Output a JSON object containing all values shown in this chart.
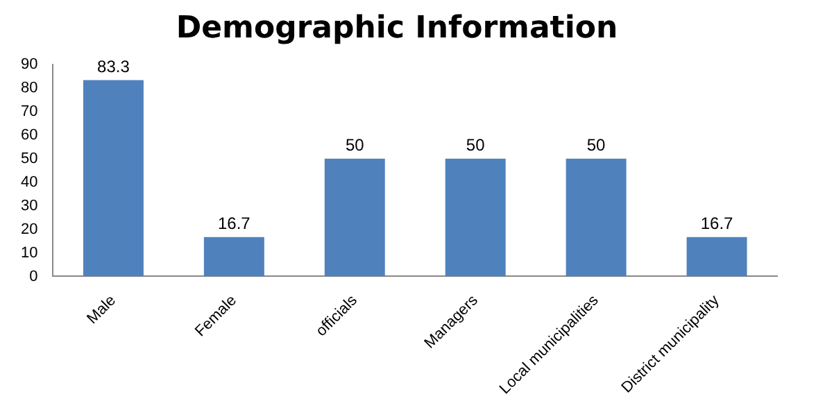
{
  "chart_data": {
    "type": "bar",
    "title": "Demographic Information",
    "categories": [
      "Male",
      "Female",
      "officials",
      "Managers",
      "Local municipalities",
      "District municipality"
    ],
    "values": [
      83.3,
      16.7,
      50,
      50,
      50,
      16.7
    ],
    "color": "#4f81bd",
    "ylim": [
      0,
      90
    ],
    "yticks": [
      0,
      10,
      20,
      30,
      40,
      50,
      60,
      70,
      80,
      90
    ],
    "grid": false,
    "data_labels": true,
    "legend": false
  }
}
